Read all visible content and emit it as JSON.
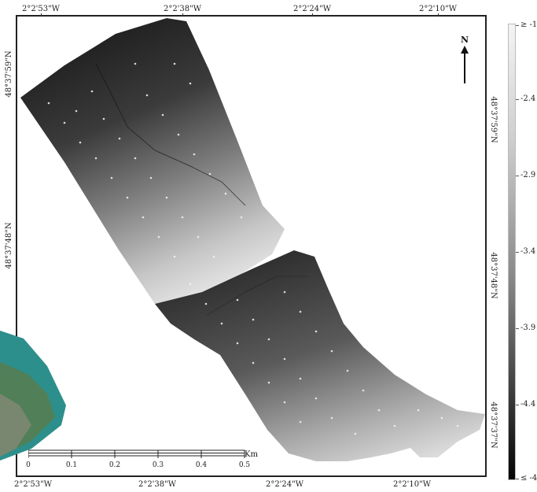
{
  "map": {
    "top_coords": [
      "2°2'53\"W",
      "2°2'38\"W",
      "2°2'24\"W",
      "2°2'10\"W"
    ],
    "bottom_coords": [
      "2°2'53\"W",
      "2°2'38\"W",
      "2°2'24\"W",
      "2°2'10\"W"
    ],
    "left_coords": [
      "48°37'59\"N",
      "48°37'48\"N"
    ],
    "right_coords": [
      "48°37'59\"N",
      "48°37'48\"N",
      "48°37'37\"N"
    ],
    "north_label": "N"
  },
  "legend": {
    "labels": [
      "≥ -1.",
      "-2.4",
      "-2.9",
      "-3.4",
      "-3.9",
      "-4.4",
      "≤ -4"
    ],
    "colors": [
      "#f4f4f4",
      "#050505"
    ]
  },
  "scalebar": {
    "ticks": [
      "0",
      "0.1",
      "0.2",
      "0.3",
      "0.4",
      "0.5"
    ],
    "unit": "Km"
  }
}
